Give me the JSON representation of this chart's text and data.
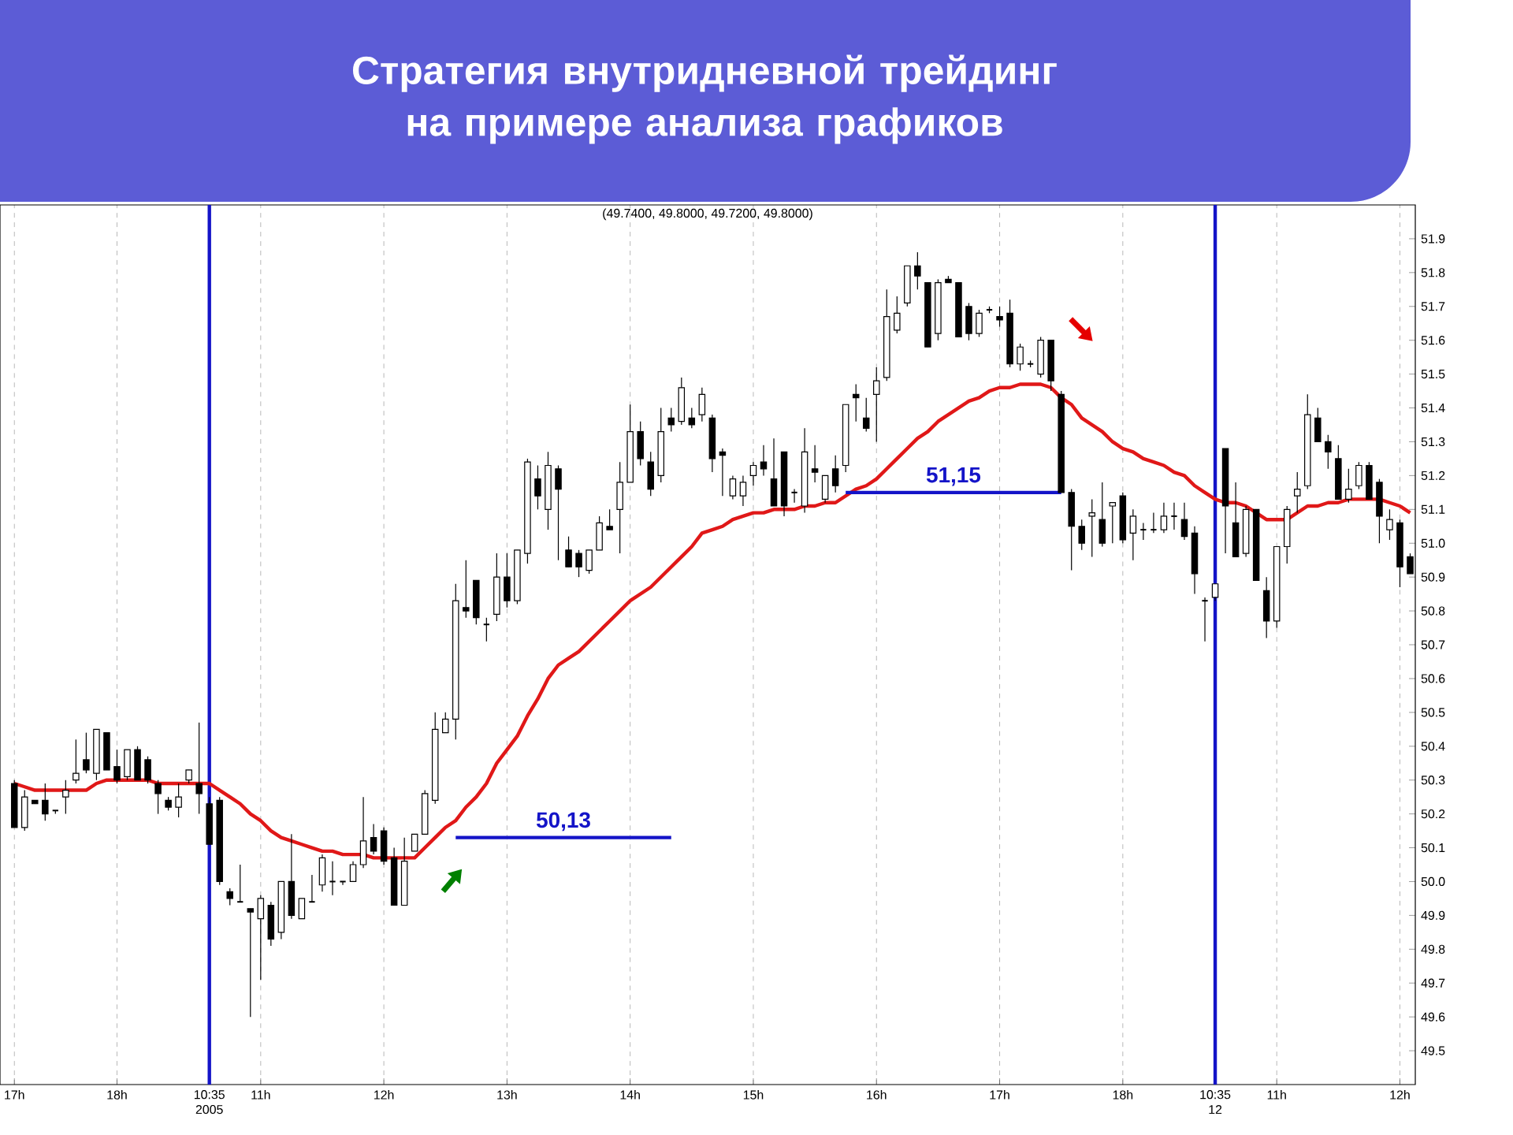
{
  "chart_data": {
    "type": "candlestick",
    "title": "Стратегия внутридневной трейдинг на примере анализа графиков",
    "annotations": [
      "(49.7400, 49.8000, 49.7200, 49.8000)"
    ],
    "categories": [
      "17h",
      null,
      null,
      null,
      null,
      null,
      null,
      null,
      null,
      null,
      "18h",
      null,
      null,
      null,
      null,
      null,
      null,
      null,
      null,
      "10:35 2005",
      null,
      null,
      null,
      null,
      "11h",
      null,
      null,
      null,
      null,
      null,
      null,
      null,
      null,
      null,
      null,
      null,
      "12h",
      null,
      null,
      null,
      null,
      null,
      null,
      null,
      null,
      null,
      null,
      null,
      "13h",
      null,
      null,
      null,
      null,
      null,
      null,
      null,
      null,
      null,
      null,
      null,
      "14h",
      null,
      null,
      null,
      null,
      null,
      null,
      null,
      null,
      null,
      null,
      null,
      "15h",
      null,
      null,
      null,
      null,
      null,
      null,
      null,
      null,
      null,
      null,
      null,
      "16h",
      null,
      null,
      null,
      null,
      null,
      null,
      null,
      null,
      null,
      null,
      null,
      "17h",
      null,
      null,
      null,
      null,
      null,
      null,
      null,
      null,
      null,
      null,
      null,
      "18h",
      null,
      null,
      null,
      null,
      null,
      null,
      null,
      null,
      "10:35 12",
      null,
      null,
      null,
      null,
      null,
      "11h",
      null,
      null,
      null,
      null,
      null,
      null,
      null,
      null,
      null,
      null,
      null,
      "12h",
      null
    ],
    "ohlc": [
      [
        50.29,
        50.3,
        50.16,
        50.16
      ],
      [
        50.16,
        50.27,
        50.15,
        50.25
      ],
      [
        50.24,
        50.24,
        50.23,
        50.23
      ],
      [
        50.24,
        50.29,
        50.18,
        50.2
      ],
      [
        50.21,
        50.21,
        50.2,
        50.21
      ],
      [
        50.25,
        50.3,
        50.2,
        50.27
      ],
      [
        50.3,
        50.42,
        50.29,
        50.32
      ],
      [
        50.36,
        50.44,
        50.32,
        50.33
      ],
      [
        50.32,
        50.45,
        50.3,
        50.45
      ],
      [
        50.44,
        50.44,
        50.33,
        50.33
      ],
      [
        50.34,
        50.39,
        50.29,
        50.3
      ],
      [
        50.31,
        50.39,
        50.3,
        50.39
      ],
      [
        50.39,
        50.4,
        50.3,
        50.3
      ],
      [
        50.36,
        50.37,
        50.29,
        50.3
      ],
      [
        50.29,
        50.3,
        50.2,
        50.26
      ],
      [
        50.24,
        50.25,
        50.21,
        50.22
      ],
      [
        50.22,
        50.29,
        50.19,
        50.25
      ],
      [
        50.3,
        50.33,
        50.29,
        50.33
      ],
      [
        50.29,
        50.47,
        50.2,
        50.26
      ],
      [
        50.23,
        50.25,
        50.11,
        50.11
      ],
      [
        50.24,
        50.25,
        49.99,
        50.0
      ],
      [
        49.97,
        49.98,
        49.93,
        49.95
      ],
      [
        49.94,
        50.05,
        49.94,
        49.94
      ],
      [
        49.92,
        49.92,
        49.6,
        49.91
      ],
      [
        49.89,
        49.96,
        49.71,
        49.95
      ],
      [
        49.93,
        49.94,
        49.81,
        49.83
      ],
      [
        49.85,
        50.0,
        49.83,
        50.0
      ],
      [
        50.0,
        50.14,
        49.89,
        49.9
      ],
      [
        49.89,
        49.95,
        49.89,
        49.95
      ],
      [
        49.94,
        50.02,
        49.94,
        49.94
      ],
      [
        49.99,
        50.08,
        49.97,
        50.07
      ],
      [
        50.0,
        50.06,
        49.96,
        50.0
      ],
      [
        50.0,
        50.0,
        49.99,
        50.0
      ],
      [
        50.0,
        50.06,
        50.0,
        50.05
      ],
      [
        50.05,
        50.25,
        50.04,
        50.12
      ],
      [
        50.13,
        50.17,
        50.08,
        50.09
      ],
      [
        50.15,
        50.16,
        50.05,
        50.06
      ],
      [
        50.07,
        50.1,
        49.93,
        49.93
      ],
      [
        49.93,
        50.13,
        49.93,
        50.06
      ],
      [
        50.09,
        50.14,
        50.09,
        50.14
      ],
      [
        50.14,
        50.27,
        50.14,
        50.26
      ],
      [
        50.24,
        50.5,
        50.23,
        50.45
      ],
      [
        50.44,
        50.5,
        50.44,
        50.48
      ],
      [
        50.48,
        50.88,
        50.42,
        50.83
      ],
      [
        50.81,
        50.95,
        50.78,
        50.8
      ],
      [
        50.89,
        50.89,
        50.76,
        50.78
      ],
      [
        50.76,
        50.78,
        50.71,
        50.76
      ],
      [
        50.79,
        50.97,
        50.77,
        50.9
      ],
      [
        50.9,
        50.97,
        50.81,
        50.83
      ],
      [
        50.83,
        50.98,
        50.82,
        50.98
      ],
      [
        50.97,
        51.25,
        50.94,
        51.24
      ],
      [
        51.19,
        51.23,
        51.1,
        51.14
      ],
      [
        51.1,
        51.27,
        51.04,
        51.23
      ],
      [
        51.22,
        51.23,
        50.95,
        51.16
      ],
      [
        50.98,
        51.02,
        50.93,
        50.93
      ],
      [
        50.97,
        50.98,
        50.9,
        50.93
      ],
      [
        50.92,
        50.98,
        50.91,
        50.98
      ],
      [
        50.98,
        51.08,
        50.98,
        51.06
      ],
      [
        51.05,
        51.1,
        51.04,
        51.04
      ],
      [
        51.1,
        51.24,
        50.97,
        51.18
      ],
      [
        51.18,
        51.41,
        51.18,
        51.33
      ],
      [
        51.33,
        51.36,
        51.23,
        51.25
      ],
      [
        51.24,
        51.27,
        51.14,
        51.16
      ],
      [
        51.2,
        51.4,
        51.18,
        51.33
      ],
      [
        51.37,
        51.4,
        51.33,
        51.35
      ],
      [
        51.36,
        51.49,
        51.35,
        51.46
      ],
      [
        51.37,
        51.4,
        51.34,
        51.35
      ],
      [
        51.38,
        51.46,
        51.36,
        51.44
      ],
      [
        51.37,
        51.38,
        51.21,
        51.25
      ],
      [
        51.27,
        51.28,
        51.14,
        51.26
      ],
      [
        51.14,
        51.2,
        51.13,
        51.19
      ],
      [
        51.14,
        51.2,
        51.11,
        51.18
      ],
      [
        51.2,
        51.24,
        51.17,
        51.23
      ],
      [
        51.24,
        51.29,
        51.2,
        51.22
      ],
      [
        51.19,
        51.31,
        51.11,
        51.11
      ],
      [
        51.27,
        51.27,
        51.08,
        51.11
      ],
      [
        51.15,
        51.16,
        51.12,
        51.15
      ],
      [
        51.11,
        51.34,
        51.09,
        51.27
      ],
      [
        51.22,
        51.29,
        51.18,
        51.21
      ],
      [
        51.13,
        51.2,
        51.12,
        51.2
      ],
      [
        51.22,
        51.26,
        51.15,
        51.17
      ],
      [
        51.23,
        51.41,
        51.21,
        51.41
      ],
      [
        51.44,
        51.47,
        51.36,
        51.43
      ],
      [
        51.37,
        51.43,
        51.33,
        51.34
      ],
      [
        51.44,
        51.52,
        51.3,
        51.48
      ],
      [
        51.49,
        51.75,
        51.48,
        51.67
      ],
      [
        51.63,
        51.73,
        51.62,
        51.68
      ],
      [
        51.71,
        51.82,
        51.7,
        51.82
      ],
      [
        51.82,
        51.86,
        51.75,
        51.79
      ],
      [
        51.77,
        51.77,
        51.58,
        51.58
      ],
      [
        51.62,
        51.78,
        51.6,
        51.77
      ],
      [
        51.78,
        51.79,
        51.77,
        51.77
      ],
      [
        51.77,
        51.77,
        51.61,
        51.61
      ],
      [
        51.7,
        51.71,
        51.6,
        51.62
      ],
      [
        51.62,
        51.69,
        51.61,
        51.68
      ],
      [
        51.69,
        51.7,
        51.68,
        51.69
      ],
      [
        51.67,
        51.7,
        51.64,
        51.66
      ],
      [
        51.68,
        51.72,
        51.52,
        51.53
      ],
      [
        51.53,
        51.59,
        51.51,
        51.58
      ],
      [
        51.53,
        51.54,
        51.52,
        51.53
      ],
      [
        51.5,
        51.61,
        51.49,
        51.6
      ],
      [
        51.6,
        51.6,
        51.45,
        51.48
      ],
      [
        51.44,
        51.45,
        51.15,
        51.15
      ],
      [
        51.15,
        51.16,
        50.92,
        51.05
      ],
      [
        51.05,
        51.07,
        50.98,
        51.0
      ],
      [
        51.08,
        51.13,
        50.96,
        51.09
      ],
      [
        51.07,
        51.18,
        50.99,
        51.0
      ],
      [
        51.11,
        51.12,
        51.0,
        51.12
      ],
      [
        51.14,
        51.15,
        51.0,
        51.01
      ],
      [
        51.03,
        51.1,
        50.95,
        51.08
      ],
      [
        51.04,
        51.06,
        51.01,
        51.04
      ],
      [
        51.04,
        51.09,
        51.03,
        51.04
      ],
      [
        51.04,
        51.12,
        51.03,
        51.08
      ],
      [
        51.08,
        51.12,
        51.04,
        51.08
      ],
      [
        51.07,
        51.12,
        51.01,
        51.02
      ],
      [
        51.03,
        51.05,
        50.85,
        50.91
      ],
      [
        50.83,
        50.84,
        50.71,
        50.83
      ],
      [
        50.84,
        50.88,
        50.83,
        50.88
      ],
      [
        51.28,
        51.28,
        50.97,
        51.11
      ],
      [
        51.06,
        51.18,
        50.96,
        50.96
      ],
      [
        50.97,
        51.11,
        50.96,
        51.1
      ],
      [
        51.1,
        51.1,
        50.89,
        50.89
      ],
      [
        50.86,
        50.9,
        50.72,
        50.77
      ],
      [
        50.77,
        50.99,
        50.75,
        50.99
      ],
      [
        50.99,
        51.11,
        50.94,
        51.1
      ],
      [
        51.14,
        51.21,
        51.09,
        51.16
      ],
      [
        51.17,
        51.44,
        51.16,
        51.38
      ],
      [
        51.37,
        51.4,
        51.3,
        51.3
      ],
      [
        51.3,
        51.32,
        51.22,
        51.27
      ],
      [
        51.25,
        51.29,
        51.13,
        51.13
      ],
      [
        51.13,
        51.22,
        51.12,
        51.16
      ],
      [
        51.17,
        51.24,
        51.16,
        51.23
      ],
      [
        51.23,
        51.24,
        51.13,
        51.13
      ],
      [
        51.18,
        51.19,
        51.0,
        51.08
      ],
      [
        51.04,
        51.1,
        51.01,
        51.07
      ],
      [
        51.06,
        51.07,
        50.87,
        50.93
      ],
      [
        50.96,
        50.97,
        50.91,
        50.91
      ]
    ],
    "series": [
      {
        "type": "line",
        "color": "#e01818",
        "values": [
          50.29,
          50.28,
          50.27,
          50.27,
          50.27,
          50.27,
          50.27,
          50.27,
          50.29,
          50.3,
          50.3,
          50.3,
          50.3,
          50.3,
          50.29,
          50.29,
          50.29,
          50.29,
          50.29,
          50.29,
          50.27,
          50.25,
          50.23,
          50.2,
          50.18,
          50.15,
          50.13,
          50.12,
          50.11,
          50.1,
          50.09,
          50.09,
          50.08,
          50.08,
          50.08,
          50.07,
          50.07,
          50.07,
          50.07,
          50.07,
          50.1,
          50.13,
          50.16,
          50.18,
          50.22,
          50.25,
          50.29,
          50.35,
          50.39,
          50.43,
          50.49,
          50.54,
          50.6,
          50.64,
          50.66,
          50.68,
          50.71,
          50.74,
          50.77,
          50.8,
          50.83,
          50.85,
          50.87,
          50.9,
          50.93,
          50.96,
          50.99,
          51.03,
          51.04,
          51.05,
          51.07,
          51.08,
          51.09,
          51.09,
          51.1,
          51.1,
          51.1,
          51.11,
          51.11,
          51.12,
          51.12,
          51.14,
          51.16,
          51.17,
          51.19,
          51.22,
          51.25,
          51.28,
          51.31,
          51.33,
          51.36,
          51.38,
          51.4,
          51.42,
          51.43,
          51.45,
          51.46,
          51.46,
          51.47,
          51.47,
          51.47,
          51.46,
          51.43,
          51.41,
          51.37,
          51.35,
          51.33,
          51.3,
          51.28,
          51.27,
          51.25,
          51.24,
          51.23,
          51.21,
          51.2,
          51.17,
          51.15,
          51.13,
          51.12,
          51.12,
          51.11,
          51.09,
          51.07,
          51.07,
          51.07,
          51.09,
          51.11,
          51.11,
          51.12,
          51.12,
          51.13,
          51.13,
          51.13,
          51.13,
          51.12,
          51.11,
          51.09
        ]
      },
      {
        "type": "line",
        "name": "50,13",
        "color": "#1414c8",
        "values": [
          null,
          null,
          null,
          null,
          null,
          null,
          null,
          null,
          null,
          null,
          null,
          null,
          null,
          null,
          null,
          null,
          null,
          null,
          null,
          null,
          null,
          null,
          null,
          null,
          null,
          null,
          null,
          null,
          null,
          null,
          null,
          null,
          null,
          null,
          null,
          null,
          null,
          null,
          null,
          null,
          null,
          null,
          null,
          50.13,
          50.13,
          50.13,
          50.13,
          50.13,
          50.13,
          50.13,
          50.13,
          50.13,
          50.13,
          50.13,
          50.13,
          50.13,
          50.13,
          50.13,
          50.13,
          50.13,
          50.13,
          50.13,
          50.13,
          50.13,
          50.13,
          null,
          null,
          null,
          null,
          null,
          null,
          null,
          null,
          null,
          null,
          null,
          null,
          null,
          null,
          null,
          null,
          null,
          null,
          null,
          null,
          null,
          null,
          null,
          null,
          null,
          null,
          null,
          null,
          null,
          null,
          null,
          null,
          null,
          null,
          null,
          null,
          null,
          null,
          null,
          null,
          null,
          null,
          null,
          null,
          null,
          null,
          null,
          null,
          null,
          null,
          null,
          null,
          null,
          null,
          null,
          null,
          null,
          null,
          null,
          null,
          null,
          null,
          null,
          null,
          null,
          null,
          null,
          null,
          null,
          null,
          null,
          null
        ]
      },
      {
        "type": "line",
        "name": "51,15",
        "color": "#1414c8",
        "values": [
          null,
          null,
          null,
          null,
          null,
          null,
          null,
          null,
          null,
          null,
          null,
          null,
          null,
          null,
          null,
          null,
          null,
          null,
          null,
          null,
          null,
          null,
          null,
          null,
          null,
          null,
          null,
          null,
          null,
          null,
          null,
          null,
          null,
          null,
          null,
          null,
          null,
          null,
          null,
          null,
          null,
          null,
          null,
          null,
          null,
          null,
          null,
          null,
          null,
          null,
          null,
          null,
          null,
          null,
          null,
          null,
          null,
          null,
          null,
          null,
          null,
          null,
          null,
          null,
          null,
          null,
          null,
          null,
          null,
          null,
          null,
          null,
          null,
          null,
          null,
          null,
          null,
          null,
          null,
          null,
          null,
          51.15,
          51.15,
          51.15,
          51.15,
          51.15,
          51.15,
          51.15,
          51.15,
          51.15,
          51.15,
          51.15,
          51.15,
          51.15,
          51.15,
          51.15,
          51.15,
          51.15,
          51.15,
          51.15,
          51.15,
          51.15,
          51.15,
          null,
          null,
          null,
          null,
          null,
          null,
          null,
          null,
          null,
          null,
          null,
          null,
          null,
          null,
          null,
          null,
          null,
          null,
          null,
          null,
          null,
          null,
          null,
          null,
          null,
          null,
          null,
          null,
          null,
          null,
          null,
          null,
          null,
          null
        ]
      }
    ],
    "ref_lines": [
      {
        "axis": "x",
        "value": "10:35 2005",
        "color": "#1414c8"
      },
      {
        "axis": "x",
        "value": "10:35 12",
        "color": "#1414c8"
      }
    ],
    "ylim": [
      49.4,
      52.0
    ],
    "yticks": [
      49.5,
      49.6,
      49.7,
      49.8,
      49.9,
      {
        "value": 50,
        "label": "50.0"
      },
      50.1,
      50.2,
      50.3,
      50.4,
      50.5,
      50.6,
      50.7,
      50.8,
      50.9,
      {
        "value": 51,
        "label": "51.0"
      },
      51.1,
      51.2,
      51.3,
      51.4,
      51.5,
      51.6,
      51.7,
      51.8,
      51.9
    ],
    "grid": "x"
  }
}
